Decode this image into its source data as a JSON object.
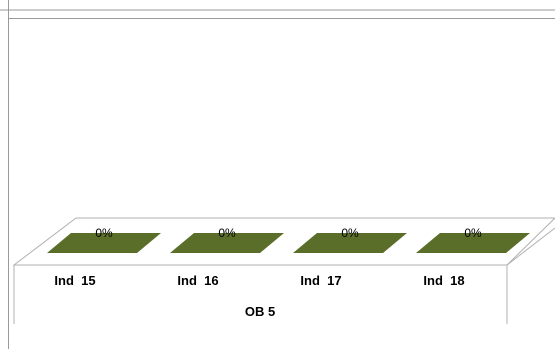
{
  "chart_data": {
    "type": "bar",
    "title": "",
    "xlabel": "",
    "ylabel": "",
    "group_label": "OB 5",
    "categories": [
      "Ind  15",
      "Ind  16",
      "Ind  17",
      "Ind  18"
    ],
    "values": [
      0,
      0,
      0,
      0
    ],
    "data_labels": [
      "0%",
      "0%",
      "0%",
      "0%"
    ],
    "ylim": [
      0,
      1
    ],
    "grid": false,
    "legend": "none",
    "bar_color": "#5a6e2a"
  }
}
